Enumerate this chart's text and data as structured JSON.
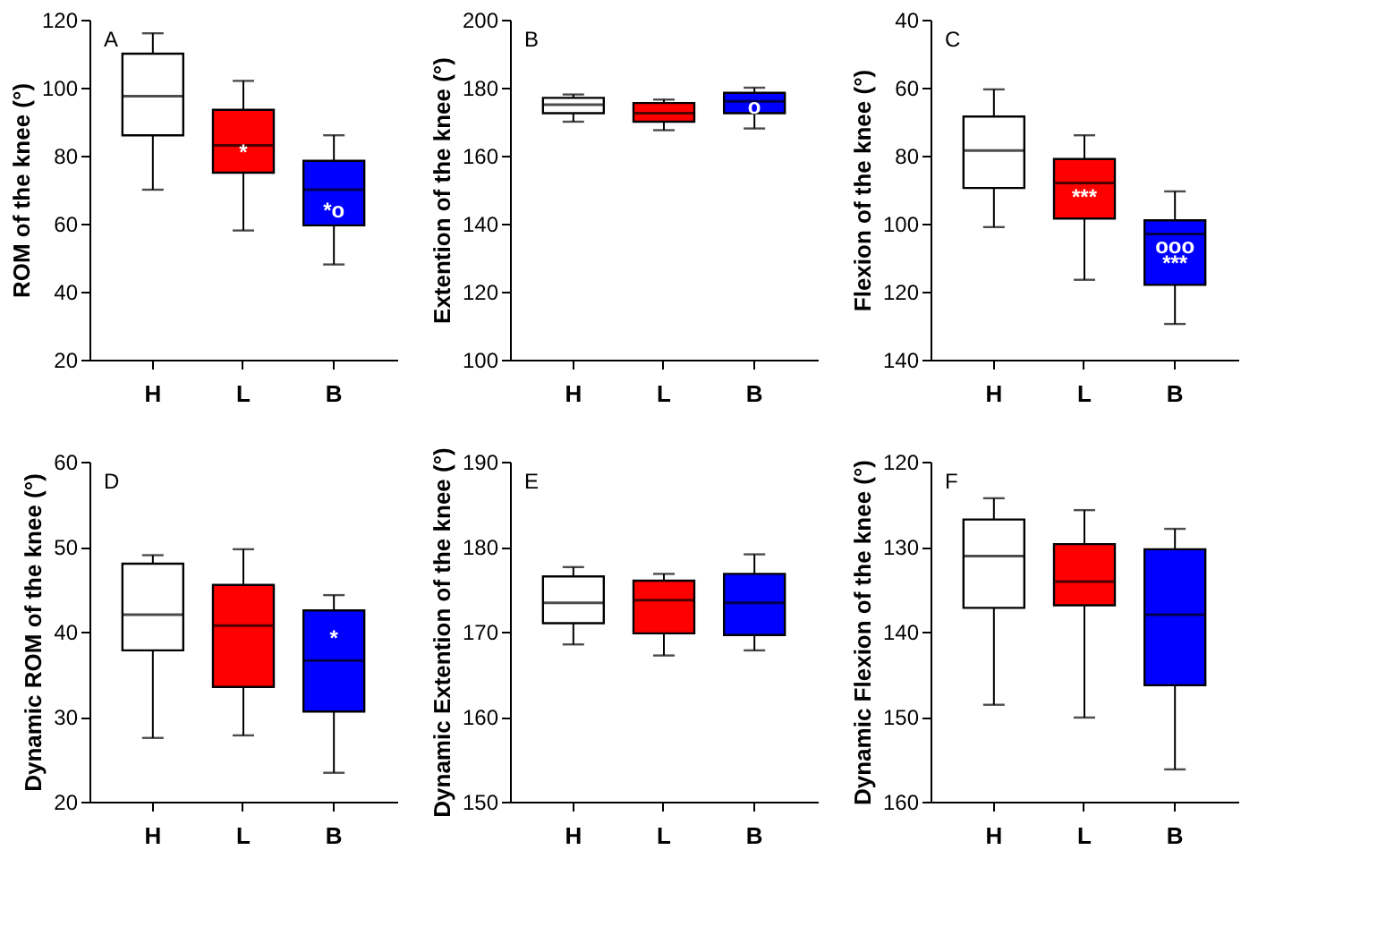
{
  "chart_data": [
    {
      "type": "box",
      "ylabel": "ROM of the knee (°)",
      "categories": [
        "H",
        "L",
        "B"
      ],
      "colors": [
        "#ffffff",
        "#ff0000",
        "#0000ff"
      ],
      "ylim": [
        20,
        120
      ],
      "yticks": [
        20,
        40,
        60,
        80,
        100,
        120
      ],
      "boxes": [
        {
          "low": 70,
          "q1": 86,
          "median": 97.5,
          "q3": 110,
          "high": 116
        },
        {
          "low": 58,
          "q1": 75,
          "median": 83,
          "q3": 93.5,
          "high": 102
        },
        {
          "low": 48,
          "q1": 59.5,
          "median": 70,
          "q3": 78.5,
          "high": 86
        }
      ],
      "annotations": [
        "A",
        "*",
        "*o"
      ]
    },
    {
      "type": "box",
      "ylabel": "Extention of the knee (°)",
      "categories": [
        "H",
        "L",
        "B"
      ],
      "colors": [
        "#ffffff",
        "#ff0000",
        "#0000ff"
      ],
      "ylim": [
        100,
        200
      ],
      "yticks": [
        100,
        120,
        140,
        160,
        180,
        200
      ],
      "boxes": [
        {
          "low": 170,
          "q1": 172.5,
          "median": 175,
          "q3": 177,
          "high": 178
        },
        {
          "low": 167.5,
          "q1": 170,
          "median": 172.5,
          "q3": 175.5,
          "high": 176.5
        },
        {
          "low": 168,
          "q1": 172.5,
          "median": 176,
          "q3": 178.5,
          "high": 180
        }
      ],
      "annotations": [
        "B",
        "o"
      ]
    },
    {
      "type": "box",
      "ylabel": "Flexion of the knee (°)",
      "categories": [
        "H",
        "L",
        "B"
      ],
      "colors": [
        "#ffffff",
        "#ff0000",
        "#0000ff"
      ],
      "ylim": [
        140,
        40
      ],
      "yticks": [
        40,
        60,
        80,
        100,
        120,
        140
      ],
      "boxes": [
        {
          "low": 60.5,
          "q1": 68.5,
          "median": 78.5,
          "q3": 89.5,
          "high": 101
        },
        {
          "low": 74,
          "q1": 81,
          "median": 88,
          "q3": 98.5,
          "high": 116.5
        },
        {
          "low": 90.5,
          "q1": 99,
          "median": 103,
          "q3": 118,
          "high": 129.5
        }
      ],
      "annotations": [
        "C",
        "***",
        "ooo",
        "***"
      ]
    },
    {
      "type": "box",
      "ylabel": "Dynamic ROM of the knee (°)",
      "categories": [
        "H",
        "L",
        "B"
      ],
      "colors": [
        "#ffffff",
        "#ff0000",
        "#0000ff"
      ],
      "ylim": [
        20,
        60
      ],
      "yticks": [
        20,
        30,
        40,
        50,
        60
      ],
      "boxes": [
        {
          "low": 27.5,
          "q1": 37.8,
          "median": 42,
          "q3": 48,
          "high": 49
        },
        {
          "low": 27.8,
          "q1": 33.5,
          "median": 40.7,
          "q3": 45.5,
          "high": 49.7
        },
        {
          "low": 23.4,
          "q1": 30.6,
          "median": 36.6,
          "q3": 42.5,
          "high": 44.3
        }
      ],
      "annotations": [
        "D",
        "*"
      ]
    },
    {
      "type": "box",
      "ylabel": "Dynamic Extention of the knee (°)",
      "categories": [
        "H",
        "L",
        "B"
      ],
      "colors": [
        "#ffffff",
        "#ff0000",
        "#0000ff"
      ],
      "ylim": [
        150,
        190
      ],
      "yticks": [
        150,
        160,
        170,
        180,
        190
      ],
      "boxes": [
        {
          "low": 168.5,
          "q1": 171,
          "median": 173.4,
          "q3": 176.5,
          "high": 177.6
        },
        {
          "low": 167.2,
          "q1": 169.8,
          "median": 173.7,
          "q3": 176,
          "high": 176.8
        },
        {
          "low": 167.8,
          "q1": 169.6,
          "median": 173.4,
          "q3": 176.8,
          "high": 179.1
        }
      ],
      "annotations": [
        "E"
      ]
    },
    {
      "type": "box",
      "ylabel": "Dynamic Flexion of the knee (°)",
      "categories": [
        "H",
        "L",
        "B"
      ],
      "colors": [
        "#ffffff",
        "#ff0000",
        "#0000ff"
      ],
      "ylim": [
        160,
        120
      ],
      "yticks": [
        120,
        130,
        140,
        150,
        160
      ],
      "boxes": [
        {
          "low": 124.3,
          "q1": 126.8,
          "median": 131.1,
          "q3": 137.2,
          "high": 148.6
        },
        {
          "low": 125.7,
          "q1": 129.7,
          "median": 134.1,
          "q3": 136.9,
          "high": 150.1
        },
        {
          "low": 127.9,
          "q1": 130.3,
          "median": 138,
          "q3": 146.3,
          "high": 156.2
        }
      ],
      "annotations": [
        "F"
      ]
    }
  ]
}
